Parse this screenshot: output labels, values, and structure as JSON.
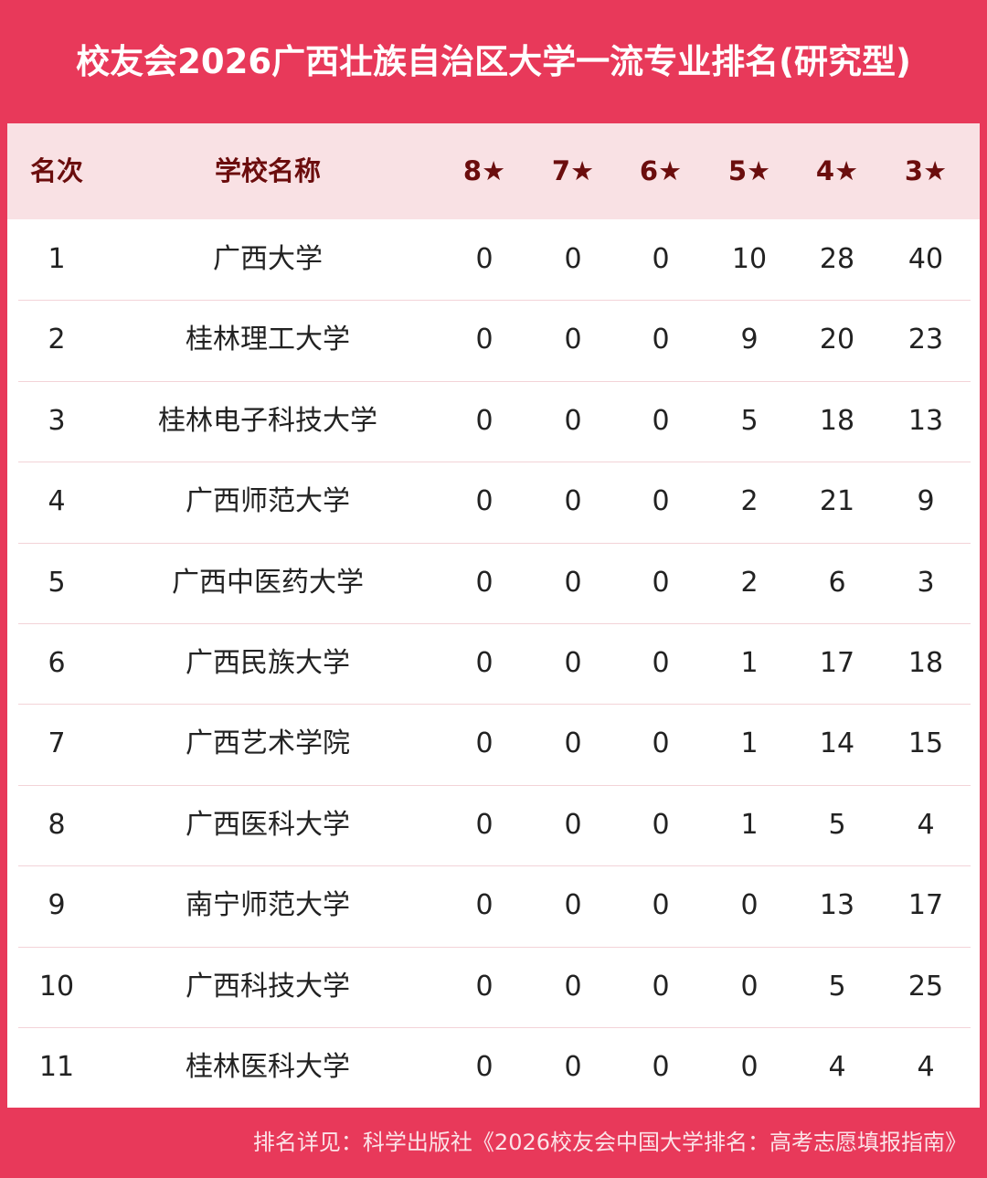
{
  "header": {
    "title": "校友会2026广西壮族自治区大学一流专业排名(研究型)"
  },
  "table": {
    "columns": [
      "名次",
      "学校名称",
      "8★",
      "7★",
      "6★",
      "5★",
      "4★",
      "3★"
    ],
    "rows": [
      [
        1,
        "广西大学",
        0,
        0,
        0,
        10,
        28,
        40
      ],
      [
        2,
        "桂林理工大学",
        0,
        0,
        0,
        9,
        20,
        23
      ],
      [
        3,
        "桂林电子科技大学",
        0,
        0,
        0,
        5,
        18,
        13
      ],
      [
        4,
        "广西师范大学",
        0,
        0,
        0,
        2,
        21,
        9
      ],
      [
        5,
        "广西中医药大学",
        0,
        0,
        0,
        2,
        6,
        3
      ],
      [
        6,
        "广西民族大学",
        0,
        0,
        0,
        1,
        17,
        18
      ],
      [
        7,
        "广西艺术学院",
        0,
        0,
        0,
        1,
        14,
        15
      ],
      [
        8,
        "广西医科大学",
        0,
        0,
        0,
        1,
        5,
        4
      ],
      [
        9,
        "南宁师范大学",
        0,
        0,
        0,
        0,
        13,
        17
      ],
      [
        10,
        "广西科技大学",
        0,
        0,
        0,
        0,
        5,
        25
      ],
      [
        11,
        "桂林医科大学",
        0,
        0,
        0,
        0,
        4,
        4
      ]
    ]
  },
  "footer": {
    "source": "排名详见：科学出版社《2026校友会中国大学排名：高考志愿填报指南》"
  }
}
